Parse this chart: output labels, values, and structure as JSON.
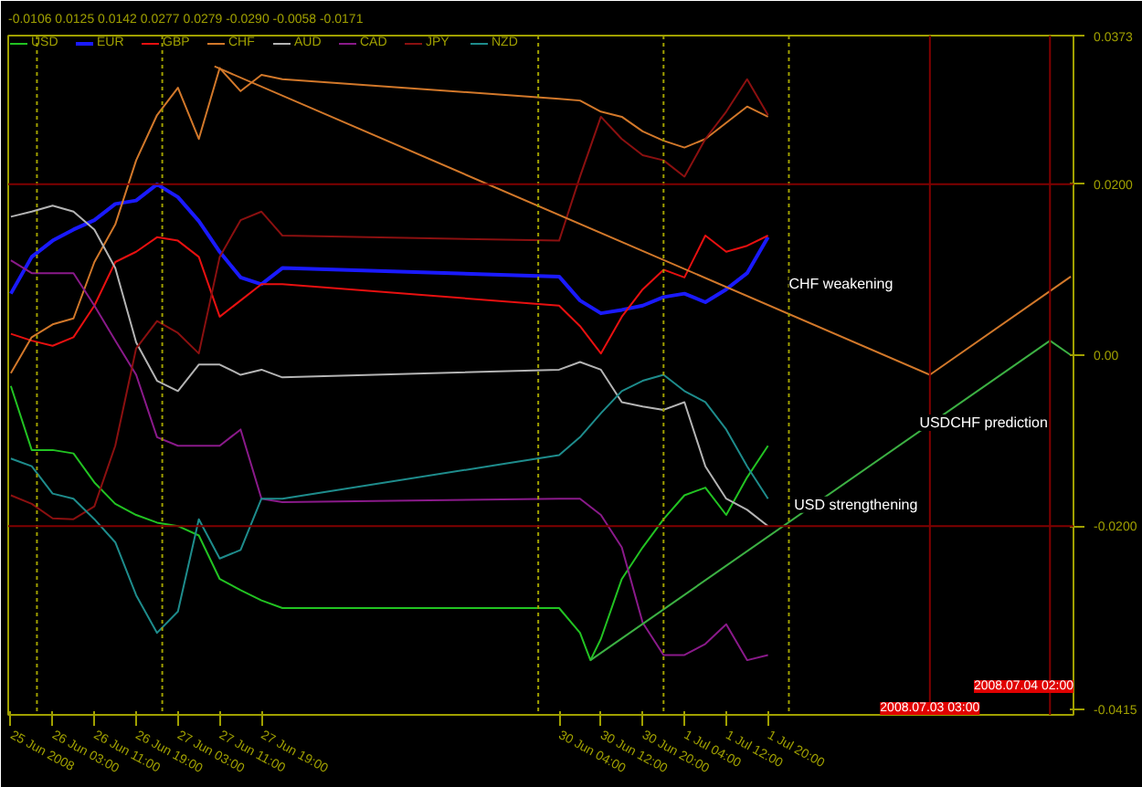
{
  "chart_data": {
    "type": "line",
    "subtitle": "-0.0106 0.0125 0.0142 0.0277 0.0279 -0.0290 -0.0058 -0.0171",
    "x": [
      "2008-06-25T19:00",
      "2008-06-25T23:00",
      "2008-06-26T03:00",
      "2008-06-26T07:00",
      "2008-06-26T11:00",
      "2008-06-26T15:00",
      "2008-06-26T19:00",
      "2008-06-26T23:00",
      "2008-06-27T03:00",
      "2008-06-27T07:00",
      "2008-06-27T11:00",
      "2008-06-27T15:00",
      "2008-06-27T19:00",
      "2008-06-27T23:00",
      "2008-06-30T04:00",
      "2008-06-30T08:00",
      "2008-06-30T12:00",
      "2008-06-30T16:00",
      "2008-06-30T20:00",
      "2008-07-01T00:00",
      "2008-07-01T04:00",
      "2008-07-01T08:00",
      "2008-07-01T12:00",
      "2008-07-01T16:00",
      "2008-07-01T20:00"
    ],
    "series": [
      {
        "name": "USD",
        "color": "#22c322",
        "x": [
          "2008-06-25T19:00",
          "2008-06-25T23:00",
          "2008-06-26T03:00",
          "2008-06-26T07:00",
          "2008-06-26T11:00",
          "2008-06-26T15:00",
          "2008-06-26T19:00",
          "2008-06-26T23:00",
          "2008-06-27T03:00",
          "2008-06-27T07:00",
          "2008-06-27T11:00",
          "2008-06-27T15:00",
          "2008-06-27T19:00",
          "2008-06-27T23:00",
          "2008-06-30T04:00",
          "2008-06-30T08:00",
          "2008-06-30T10:00",
          "2008-06-30T12:00",
          "2008-06-30T16:00",
          "2008-06-30T20:00",
          "2008-07-01T00:00",
          "2008-07-01T04:00",
          "2008-07-01T08:00",
          "2008-07-01T12:00",
          "2008-07-01T16:00",
          "2008-07-01T20:00"
        ],
        "values": [
          -0.0036,
          -0.0111,
          -0.0111,
          -0.0115,
          -0.0149,
          -0.0174,
          -0.0187,
          -0.0196,
          -0.02,
          -0.0211,
          -0.0262,
          -0.0275,
          -0.0287,
          -0.0296,
          -0.0296,
          -0.0325,
          -0.0357,
          -0.0332,
          -0.0262,
          -0.0225,
          -0.0192,
          -0.0164,
          -0.0155,
          -0.0187,
          -0.0143,
          -0.0106
        ]
      },
      {
        "name": "EUR",
        "color": "#1a1aff",
        "values": [
          0.0072,
          0.0115,
          0.0134,
          0.0147,
          0.0158,
          0.0177,
          0.0181,
          0.02,
          0.0185,
          0.0157,
          0.0121,
          0.0091,
          0.0083,
          0.0102,
          0.0092,
          0.0064,
          0.0049,
          0.0053,
          0.0058,
          0.0068,
          0.0072,
          0.0062,
          0.0077,
          0.0096,
          0.0138
        ]
      },
      {
        "name": "GBP",
        "color": "#e81010",
        "values": [
          0.0025,
          0.0017,
          0.0011,
          0.0021,
          0.0058,
          0.0109,
          0.0121,
          0.0138,
          0.0134,
          0.0115,
          0.0045,
          0.0064,
          0.0083,
          0.0083,
          0.0058,
          0.0034,
          0.0002,
          0.0045,
          0.0077,
          0.01,
          0.0091,
          0.014,
          0.0121,
          0.0128,
          0.014
        ]
      },
      {
        "name": "CHF",
        "color": "#d2782a",
        "values": [
          -0.0021,
          0.0021,
          0.0036,
          0.0043,
          0.0109,
          0.0153,
          0.0228,
          0.0281,
          0.0313,
          0.0253,
          0.0336,
          0.0309,
          0.0328,
          0.0323,
          0.03,
          0.0298,
          0.0285,
          0.0279,
          0.0262,
          0.0251,
          0.0243,
          0.0253,
          0.0272,
          0.0291,
          0.0279
        ]
      },
      {
        "name": "AUD",
        "color": "#b4b4b4",
        "values": [
          0.0162,
          0.0168,
          0.0175,
          0.0168,
          0.0147,
          0.0102,
          0.0015,
          -0.003,
          -0.0042,
          -0.0011,
          -0.0011,
          -0.0023,
          -0.0017,
          -0.0026,
          -0.0017,
          -0.0008,
          -0.0017,
          -0.0055,
          -0.006,
          -0.0064,
          -0.0055,
          -0.013,
          -0.0168,
          -0.0181,
          -0.02
        ]
      },
      {
        "name": "CAD",
        "color": "#8a1a8a",
        "values": [
          0.0111,
          0.0096,
          0.0096,
          0.0096,
          0.0058,
          0.0017,
          -0.0023,
          -0.0096,
          -0.0106,
          -0.0106,
          -0.0106,
          -0.0087,
          -0.0168,
          -0.0172,
          -0.0168,
          -0.0168,
          -0.0187,
          -0.0225,
          -0.0313,
          -0.0351,
          -0.0351,
          -0.0338,
          -0.0315,
          -0.0357,
          -0.0351
        ]
      },
      {
        "name": "JPY",
        "color": "#8b1010",
        "values": [
          -0.0164,
          -0.0174,
          -0.0191,
          -0.0192,
          -0.0177,
          -0.0106,
          0.0008,
          0.004,
          0.0026,
          0.0002,
          0.0115,
          0.0158,
          0.0168,
          0.014,
          0.0134,
          0.0209,
          0.0279,
          0.0253,
          0.0234,
          0.0228,
          0.0209,
          0.0253,
          0.0285,
          0.0323,
          0.0281
        ]
      },
      {
        "name": "NZD",
        "color": "#1e8c8c",
        "values": [
          -0.0121,
          -0.013,
          -0.0162,
          -0.0168,
          -0.0192,
          -0.0219,
          -0.0281,
          -0.0325,
          -0.03,
          -0.0192,
          -0.0238,
          -0.0228,
          -0.0168,
          -0.0168,
          -0.0117,
          -0.0096,
          -0.0068,
          -0.0042,
          -0.003,
          -0.0023,
          -0.0042,
          -0.0055,
          -0.0087,
          -0.013,
          -0.0168
        ]
      },
      {
        "type": "line",
        "color": "#d2782a",
        "x": [
          "2008-06-27T10:00",
          "2008-07-03T03:00",
          "2008-07-04T06:00"
        ],
        "values": [
          0.0338,
          -0.0023,
          0.0092
        ]
      },
      {
        "type": "line",
        "color": "#3cb043",
        "x": [
          "2008-06-30T10:00",
          "2008-07-04T02:00",
          "2008-07-04T06:00"
        ],
        "values": [
          -0.0357,
          0.0017,
          0
        ]
      }
    ],
    "xlim": [
      "2008-06-25T18:30",
      "2008-07-04T06:30"
    ],
    "ylim": [
      -0.0421,
      0.0374
    ],
    "xticks": [
      {
        "value": "2008-06-25T19:00",
        "label": "25 Jun 2008"
      },
      {
        "value": "2008-06-26T03:00",
        "label": "26 Jun 03:00"
      },
      {
        "value": "2008-06-26T11:00",
        "label": "26 Jun 11:00"
      },
      {
        "value": "2008-06-26T19:00",
        "label": "26 Jun 19:00"
      },
      {
        "value": "2008-06-27T03:00",
        "label": "27 Jun 03:00"
      },
      {
        "value": "2008-06-27T11:00",
        "label": "27 Jun 11:00"
      },
      {
        "value": "2008-06-27T19:00",
        "label": "27 Jun 19:00"
      },
      {
        "value": "2008-06-30T04:00",
        "label": "30 Jun 04:00"
      },
      {
        "value": "2008-06-30T12:00",
        "label": "30 Jun 12:00"
      },
      {
        "value": "2008-06-30T20:00",
        "label": "30 Jun 20:00"
      },
      {
        "value": "2008-07-01T04:00",
        "label": "1 Jul 04:00"
      },
      {
        "value": "2008-07-01T12:00",
        "label": "1 Jul 12:00"
      },
      {
        "value": "2008-07-01T20:00",
        "label": "1 Jul 20:00"
      }
    ],
    "yticks": [
      {
        "value": 0.0373,
        "label": "0.0373"
      },
      {
        "value": 0.02,
        "label": "0.0200"
      },
      {
        "value": 0,
        "label": "0.00"
      },
      {
        "value": -0.02,
        "label": "-0.0200"
      },
      {
        "value": -0.0415,
        "label": "-0.0415"
      }
    ],
    "ref_lines": [
      {
        "axis": "x",
        "value": "2008-06-26T00:00",
        "color": "#a0a000",
        "line_style": "dotted"
      },
      {
        "axis": "x",
        "value": "2008-06-27T00:00",
        "color": "#a0a000",
        "line_style": "dotted"
      },
      {
        "axis": "x",
        "value": "2008-06-30T00:00",
        "color": "#a0a000",
        "line_style": "dotted"
      },
      {
        "axis": "x",
        "value": "2008-07-01T00:00",
        "color": "#a0a000",
        "line_style": "dotted"
      },
      {
        "axis": "x",
        "value": "2008-07-02T00:00",
        "color": "#a0a000",
        "line_style": "dotted"
      },
      {
        "axis": "y",
        "value": 0.02,
        "color": "#800000",
        "line_style": "solid"
      },
      {
        "axis": "y",
        "value": -0.02,
        "color": "#800000",
        "line_style": "solid"
      },
      {
        "axis": "x",
        "value": "2008-07-03T03:00",
        "color": "#800000",
        "line_style": "solid",
        "label": "2008.07.03 03:00"
      },
      {
        "axis": "x",
        "value": "2008-07-04T02:00",
        "color": "#800000",
        "line_style": "solid",
        "label": "2008.07.04 02:00"
      }
    ],
    "annotations": [
      {
        "text": "CHF weakening",
        "x": "2008-07-02T00:00",
        "y": 0.0083
      },
      {
        "text": "USDCHF prediction",
        "x": "2008-07-03T01:00",
        "y": -0.0079
      },
      {
        "text": "USD strengthening",
        "x": "2008-07-02T01:00",
        "y": -0.0175
      }
    ],
    "legend": "top left",
    "marker": "none",
    "line_style": "solid"
  }
}
